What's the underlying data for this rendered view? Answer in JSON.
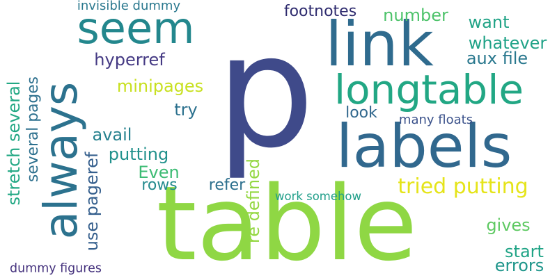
{
  "words": [
    {
      "id": "p",
      "text": "p",
      "color": "#3f4a8a",
      "orientation": "horizontal"
    },
    {
      "id": "table",
      "text": "table",
      "color": "#8fd744",
      "orientation": "horizontal"
    },
    {
      "id": "labels",
      "text": "labels",
      "color": "#31688e",
      "orientation": "horizontal"
    },
    {
      "id": "link",
      "text": "link",
      "color": "#2f6b8e",
      "orientation": "horizontal"
    },
    {
      "id": "always",
      "text": "always",
      "color": "#2c728e",
      "orientation": "vertical"
    },
    {
      "id": "seem",
      "text": "seem",
      "color": "#23878d",
      "orientation": "horizontal"
    },
    {
      "id": "longtable",
      "text": "longtable",
      "color": "#22a784",
      "orientation": "horizontal"
    },
    {
      "id": "tried-putting",
      "text": "tried putting",
      "color": "#e5e419",
      "orientation": "horizontal"
    },
    {
      "id": "footnotes",
      "text": "footnotes",
      "color": "#2e2b6e",
      "orientation": "horizontal"
    },
    {
      "id": "number",
      "text": "number",
      "color": "#4ec36b",
      "orientation": "horizontal"
    },
    {
      "id": "want",
      "text": "want",
      "color": "#20a386",
      "orientation": "horizontal"
    },
    {
      "id": "whatever",
      "text": "whatever",
      "color": "#1fa287",
      "orientation": "horizontal"
    },
    {
      "id": "aux-file",
      "text": "aux file",
      "color": "#2a788e",
      "orientation": "horizontal"
    },
    {
      "id": "hyperref",
      "text": "hyperref",
      "color": "#443983",
      "orientation": "horizontal"
    },
    {
      "id": "minipages",
      "text": "minipages",
      "color": "#c8e020",
      "orientation": "horizontal"
    },
    {
      "id": "try",
      "text": "try",
      "color": "#2c718e",
      "orientation": "horizontal"
    },
    {
      "id": "look",
      "text": "look",
      "color": "#30678d",
      "orientation": "horizontal"
    },
    {
      "id": "many-floats",
      "text": "many floats",
      "color": "#3b528b",
      "orientation": "horizontal"
    },
    {
      "id": "avail",
      "text": "avail",
      "color": "#26818e",
      "orientation": "horizontal"
    },
    {
      "id": "putting",
      "text": "putting",
      "color": "#21918c",
      "orientation": "horizontal"
    },
    {
      "id": "even",
      "text": "Even",
      "color": "#3dbc74",
      "orientation": "horizontal"
    },
    {
      "id": "rows",
      "text": "rows",
      "color": "#238a8d",
      "orientation": "horizontal"
    },
    {
      "id": "refer",
      "text": "refer",
      "color": "#2d708e",
      "orientation": "horizontal"
    },
    {
      "id": "several-pages",
      "text": "several pages",
      "color": "#2d708e",
      "orientation": "vertical"
    },
    {
      "id": "stretch-several",
      "text": "stretch several",
      "color": "#22a884",
      "orientation": "vertical"
    },
    {
      "id": "use-pageref",
      "text": "use pageref",
      "color": "#355f8d",
      "orientation": "vertical"
    },
    {
      "id": "re-defined",
      "text": "re defined",
      "color": "#93d741",
      "orientation": "vertical"
    },
    {
      "id": "work-somehow",
      "text": "work somehow",
      "color": "#1f9e89",
      "orientation": "horizontal"
    },
    {
      "id": "gives",
      "text": "gives",
      "color": "#5ec962",
      "orientation": "horizontal"
    },
    {
      "id": "start",
      "text": "start",
      "color": "#20a486",
      "orientation": "horizontal"
    },
    {
      "id": "errors",
      "text": "errors",
      "color": "#1f968b",
      "orientation": "horizontal"
    },
    {
      "id": "invisible-dummy",
      "text": "invisible dummy",
      "color": "#2a788e",
      "orientation": "horizontal"
    },
    {
      "id": "dummy-figures",
      "text": "dummy figures",
      "color": "#46337e",
      "orientation": "horizontal"
    }
  ]
}
